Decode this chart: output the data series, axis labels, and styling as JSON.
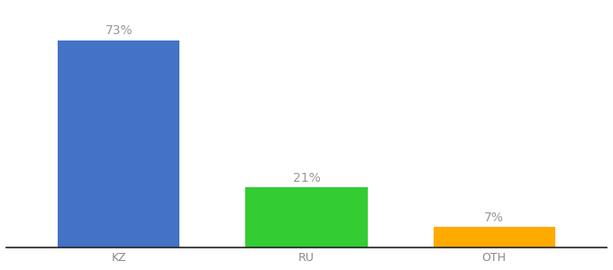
{
  "categories": [
    "KZ",
    "RU",
    "OTH"
  ],
  "values": [
    73,
    21,
    7
  ],
  "bar_colors": [
    "#4472c4",
    "#33cc33",
    "#ffaa00"
  ],
  "label_texts": [
    "73%",
    "21%",
    "7%"
  ],
  "ylim": [
    0,
    85
  ],
  "background_color": "#ffffff",
  "label_color": "#999999",
  "bar_width": 0.65,
  "label_fontsize": 10,
  "tick_fontsize": 9,
  "tick_color": "#888888"
}
